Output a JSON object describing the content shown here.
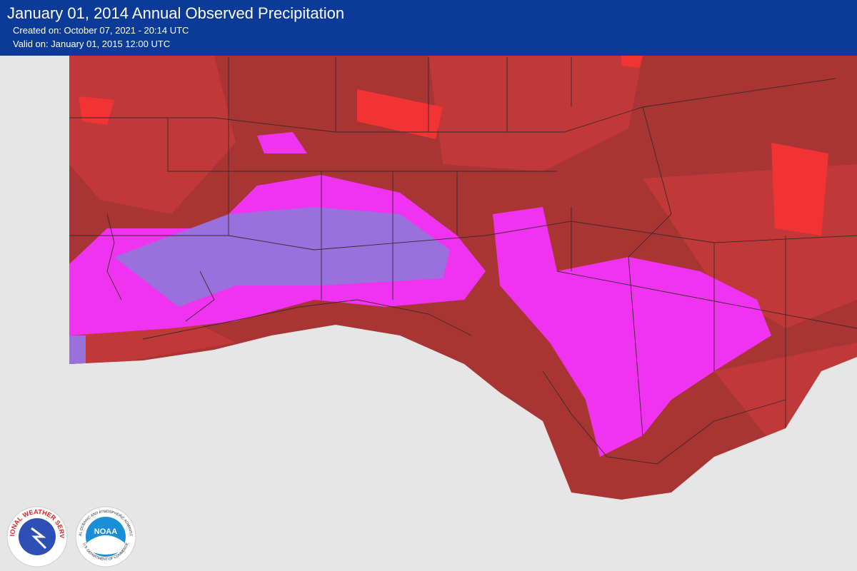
{
  "header": {
    "title": "January 01, 2014 Annual Observed Precipitation",
    "created": "Created on: October 07, 2021 - 20:14 UTC",
    "valid": "Valid on: January 01, 2015 12:00 UTC"
  },
  "logos": {
    "nws": "NATIONAL WEATHER SERVICE",
    "noaa": "NOAA",
    "noaa_ring": "NATIONAL OCEANIC AND ATMOSPHERIC ADMINISTRATION",
    "doc": "U.S. DEPARTMENT OF COMMERCE"
  }
}
